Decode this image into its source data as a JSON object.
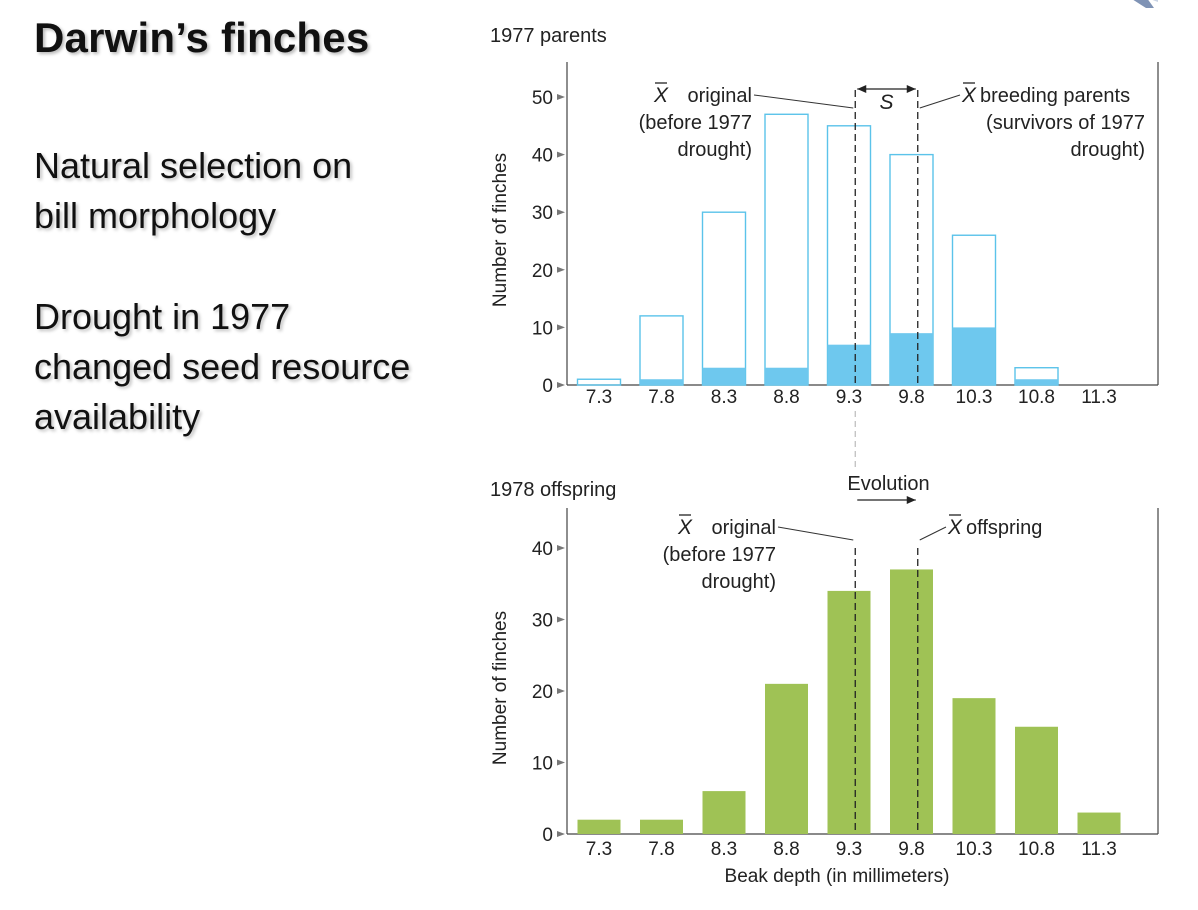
{
  "slide": {
    "title": "Darwin’s finches",
    "bullet_1": [
      "Natural selection on",
      "bill morphology"
    ],
    "bullet_2": [
      "Drought in 1977",
      "changed seed resource",
      "availability"
    ]
  },
  "chart_data": [
    {
      "type": "bar",
      "title": "1977 parents",
      "ylabel": "Number of finches",
      "xlabel": "",
      "categories": [
        "7.3",
        "7.8",
        "8.3",
        "8.8",
        "9.3",
        "9.8",
        "10.3",
        "10.8",
        "11.3"
      ],
      "yticks": [
        0,
        10,
        20,
        30,
        40,
        50
      ],
      "ylim": [
        0,
        55
      ],
      "series": [
        {
          "values": [
            1,
            12,
            30,
            47,
            45,
            40,
            26,
            3,
            0
          ],
          "color": "#5bc3ea",
          "style": "outline"
        },
        {
          "values": [
            0,
            1,
            3,
            3,
            7,
            9,
            10,
            1,
            0
          ],
          "color": "#6ec8ee",
          "style": "filled"
        }
      ],
      "annotations": {
        "mean_original": {
          "x": 9.35,
          "label": "original",
          "sublabel": [
            "(before 1977",
            "drought)"
          ]
        },
        "mean_breeding": {
          "x": 9.85,
          "label": "breeding parents",
          "sublabel": [
            "(survivors of 1977",
            "drought)"
          ]
        },
        "selection_label": "S"
      },
      "grid": false
    },
    {
      "type": "bar",
      "title": "1978 offspring",
      "ylabel": "Number of finches",
      "xlabel": "Beak depth (in millimeters)",
      "categories": [
        "7.3",
        "7.8",
        "8.3",
        "8.8",
        "9.3",
        "9.8",
        "10.3",
        "10.8",
        "11.3"
      ],
      "yticks": [
        0,
        10,
        20,
        30,
        40
      ],
      "ylim": [
        0,
        45
      ],
      "series": [
        {
          "values": [
            2,
            2,
            6,
            21,
            34,
            37,
            19,
            15,
            3
          ],
          "color": "#9fc255",
          "style": "filled"
        }
      ],
      "annotations": {
        "mean_original": {
          "x": 9.35,
          "label": "original",
          "sublabel": [
            "(before 1977",
            "drought)"
          ]
        },
        "mean_offspring": {
          "x": 9.85,
          "label": "offspring"
        },
        "evolution_label": "Evolution"
      },
      "grid": false
    }
  ]
}
